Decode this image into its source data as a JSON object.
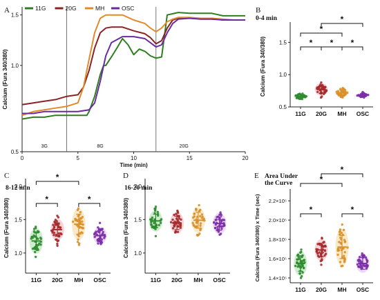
{
  "chart_data": [
    {
      "id": "A",
      "type": "line",
      "panel_label": "A",
      "legend": [
        "11G",
        "20G",
        "MH",
        "OSC"
      ],
      "colors": {
        "11G": "#2e7d1f",
        "20G": "#8b2222",
        "MH": "#e08a2a",
        "OSC": "#6a2aa0"
      },
      "xlabel": "Time (min)",
      "ylabel": "Calcium (Fura 340/380)",
      "xlim": [
        0,
        20
      ],
      "ylim": [
        0.5,
        1.6
      ],
      "y_scale": "log",
      "xticks": [
        "0",
        "5",
        "10",
        "15",
        "20"
      ],
      "yticks": [
        "0.5",
        "1.0",
        "1.5"
      ],
      "vlines": [
        4,
        12
      ],
      "phase_labels": [
        {
          "text": "3G",
          "x": 2
        },
        {
          "text": "8G",
          "x": 7
        },
        {
          "text": "20G",
          "x": 14.5
        }
      ],
      "series": [
        {
          "name": "11G",
          "x": [
            0,
            1,
            2,
            3,
            4,
            5,
            5.8,
            6,
            6.5,
            7,
            7.3,
            7.5,
            8,
            8.5,
            9,
            9.5,
            10,
            10.5,
            11,
            11.5,
            12,
            12.5,
            13,
            14,
            15,
            16,
            17,
            18,
            19,
            20
          ],
          "y": [
            0.65,
            0.66,
            0.66,
            0.67,
            0.67,
            0.67,
            0.67,
            0.69,
            0.78,
            0.93,
            1.0,
            1.0,
            1.07,
            1.15,
            1.24,
            1.18,
            1.09,
            1.14,
            1.12,
            1.08,
            1.06,
            1.07,
            1.5,
            1.53,
            1.52,
            1.52,
            1.52,
            1.49,
            1.49,
            1.49
          ]
        },
        {
          "name": "20G",
          "x": [
            0,
            1,
            2,
            3,
            4,
            5,
            5.5,
            6,
            6.5,
            7,
            7.5,
            8,
            9,
            10,
            11,
            11.5,
            12,
            12.5,
            13,
            13.5,
            14,
            15,
            16,
            17,
            18,
            19,
            20
          ],
          "y": [
            0.73,
            0.74,
            0.75,
            0.76,
            0.78,
            0.79,
            0.84,
            0.96,
            1.15,
            1.3,
            1.35,
            1.36,
            1.36,
            1.32,
            1.29,
            1.25,
            1.19,
            1.22,
            1.35,
            1.44,
            1.46,
            1.46,
            1.46,
            1.46,
            1.44,
            1.44,
            1.44
          ]
        },
        {
          "name": "MH",
          "x": [
            0,
            1,
            2,
            3,
            4,
            5,
            5.5,
            6,
            6.5,
            7,
            7.5,
            8,
            9,
            10,
            11,
            11.5,
            12,
            12.5,
            13,
            13.5,
            14,
            15,
            16,
            17,
            18,
            19,
            20
          ],
          "y": [
            0.67,
            0.69,
            0.7,
            0.71,
            0.72,
            0.74,
            0.84,
            1.05,
            1.3,
            1.46,
            1.5,
            1.5,
            1.5,
            1.44,
            1.4,
            1.35,
            1.31,
            1.35,
            1.42,
            1.45,
            1.47,
            1.47,
            1.46,
            1.46,
            1.45,
            1.44,
            1.44
          ]
        },
        {
          "name": "OSC",
          "x": [
            0,
            1,
            2,
            3,
            4,
            5,
            6,
            6.5,
            7,
            7.5,
            8,
            9,
            10,
            11,
            11.5,
            12,
            12.5,
            13,
            13.5,
            14,
            15,
            16,
            17,
            18,
            19,
            20
          ],
          "y": [
            0.68,
            0.68,
            0.69,
            0.69,
            0.69,
            0.69,
            0.7,
            0.74,
            0.88,
            1.08,
            1.2,
            1.26,
            1.26,
            1.24,
            1.2,
            1.16,
            1.18,
            1.3,
            1.4,
            1.45,
            1.46,
            1.45,
            1.45,
            1.44,
            1.44,
            1.44
          ]
        }
      ]
    },
    {
      "id": "B",
      "type": "scatter",
      "panel_label": "B",
      "subtitle": "0-4 min",
      "ylabel": "Calcium (Fura 340/380)",
      "categories": [
        "11G",
        "20G",
        "MH",
        "OSC"
      ],
      "ylim": [
        0.5,
        1.75
      ],
      "yticks": [
        "0.5",
        "1.0",
        "1.5"
      ],
      "means": [
        0.66,
        0.77,
        0.72,
        0.68
      ],
      "sds": [
        0.03,
        0.06,
        0.04,
        0.02
      ],
      "brackets": [
        [
          0,
          1
        ],
        [
          1,
          2
        ],
        [
          2,
          3
        ],
        [
          0,
          2
        ],
        [
          1,
          3
        ]
      ],
      "star": "*"
    },
    {
      "id": "C",
      "type": "scatter",
      "panel_label": "C",
      "subtitle": "8-12 min",
      "ylabel": "Calcium (Fura 340/380)",
      "categories": [
        "11G",
        "20G",
        "MH",
        "OSC"
      ],
      "ylim": [
        0.7,
        2.05
      ],
      "yticks": [
        "1.0",
        "1.5",
        "2.0"
      ],
      "means": [
        1.18,
        1.35,
        1.43,
        1.26
      ],
      "sds": [
        0.12,
        0.1,
        0.15,
        0.08
      ],
      "brackets": [
        [
          0,
          1
        ],
        [
          2,
          3
        ],
        [
          0,
          2
        ]
      ],
      "star": "*"
    },
    {
      "id": "D",
      "type": "scatter",
      "panel_label": "D",
      "subtitle": "16-20 min",
      "ylabel": "Calcium (Fura 340/380)",
      "categories": [
        "11G",
        "20G",
        "MH",
        "OSC"
      ],
      "ylim": [
        0.7,
        2.05
      ],
      "yticks": [
        "1.0",
        "1.5",
        "2.0"
      ],
      "means": [
        1.48,
        1.45,
        1.49,
        1.44
      ],
      "sds": [
        0.1,
        0.1,
        0.12,
        0.1
      ],
      "brackets": [],
      "star": "*"
    },
    {
      "id": "E",
      "type": "scatter",
      "panel_label": "E",
      "subtitle": "Area Under the Curve",
      "ylabel": "Calcium (Fura 340/380) x Time (sec)",
      "categories": [
        "11G",
        "20G",
        "MH",
        "OSC"
      ],
      "ylim": [
        135000,
        228000
      ],
      "yticks": [
        "1.4×10⁵",
        "1.6×10⁵",
        "1.8×10⁵",
        "2.0×10⁵",
        "2.2×10⁵"
      ],
      "means": [
        155000,
        169000,
        172000,
        155000
      ],
      "sds": [
        8000,
        7000,
        12000,
        6000
      ],
      "brackets": [
        [
          0,
          1
        ],
        [
          2,
          3
        ],
        [
          0,
          2
        ],
        [
          1,
          3
        ]
      ],
      "star": "*"
    }
  ]
}
